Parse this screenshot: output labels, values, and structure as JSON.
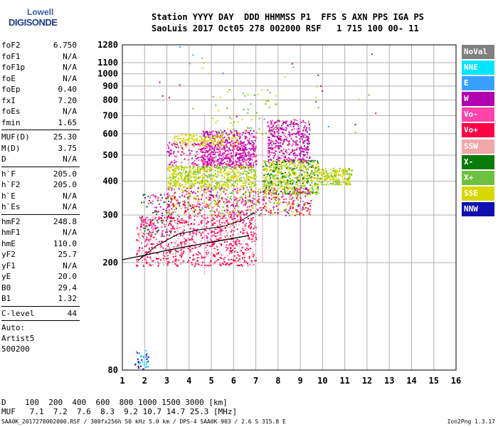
{
  "logo": {
    "line1": "Lowell",
    "line2": "DIGISONDE"
  },
  "header": {
    "line1": "Station YYYY DAY  DDD HHMMSS P1  FFS S AXN PPS IGA PS",
    "line2": "SaoLuis 2017 Oct05 278 002000 RSF   1 715 100 00- 11"
  },
  "params": [
    {
      "k": "foF2",
      "v": "6.750"
    },
    {
      "k": "foF1",
      "v": "N/A"
    },
    {
      "k": "foF1p",
      "v": "N/A"
    },
    {
      "k": "foE",
      "v": "N/A"
    },
    {
      "k": "foEp",
      "v": "0.40"
    },
    {
      "k": "fxI",
      "v": "7.20"
    },
    {
      "k": "foEs",
      "v": "N/A"
    },
    {
      "k": "fmin",
      "v": "1.65"
    },
    {
      "k": "SEP"
    },
    {
      "k": "MUF(D)",
      "v": "25.30"
    },
    {
      "k": "M(D)",
      "v": "3.75"
    },
    {
      "k": "D",
      "v": "N/A"
    },
    {
      "k": "SEP"
    },
    {
      "k": "h`F",
      "v": "205.0"
    },
    {
      "k": "h`F2",
      "v": "205.0"
    },
    {
      "k": "h`E",
      "v": "N/A"
    },
    {
      "k": "h`Es",
      "v": "N/A"
    },
    {
      "k": "SEP"
    },
    {
      "k": "hmF2",
      "v": "248.8"
    },
    {
      "k": "hmF1",
      "v": "N/A"
    },
    {
      "k": "hmE",
      "v": "110.0"
    },
    {
      "k": "yF2",
      "v": "25.7"
    },
    {
      "k": "yF1",
      "v": "N/A"
    },
    {
      "k": "yE",
      "v": "20.0"
    },
    {
      "k": "B0",
      "v": "29.4"
    },
    {
      "k": "B1",
      "v": "1.32"
    },
    {
      "k": "SEP"
    },
    {
      "k": "C-level",
      "v": "44"
    },
    {
      "k": "SEP"
    }
  ],
  "auto": [
    "Auto:",
    "Artist5",
    "500200"
  ],
  "legend": [
    {
      "label": "NoVal",
      "color": "#808080"
    },
    {
      "label": "NNE",
      "color": "#00e5ff"
    },
    {
      "label": "E",
      "color": "#3aa0ff"
    },
    {
      "label": "W",
      "color": "#b000b0"
    },
    {
      "label": "Vo-",
      "color": "#ff44aa"
    },
    {
      "label": "Vo+",
      "color": "#ff0044"
    },
    {
      "label": "SSW",
      "color": "#f0a8a8"
    },
    {
      "label": "X-",
      "color": "#0a7a0a"
    },
    {
      "label": "X+",
      "color": "#6dc040"
    },
    {
      "label": "SSE",
      "color": "#d8d800"
    },
    {
      "label": "NNW",
      "color": "#1010b0"
    }
  ],
  "muf_table": {
    "d_line": "D    100  200  400  600  800 1000 1500 3000 [km]",
    "muf_line": "MUF   7.1  7.2  7.6  8.3  9.2 10.7 14.7 25.3 [MHz]"
  },
  "footer": {
    "left": "SAA0K_2017278002000.RSF / 300fx256h 50 kHz 5.0 km / DPS-4 SAA0K 903 / 2.6 S 315.8 E",
    "right": "Ion2Png 1.3.17"
  },
  "chart_data": {
    "type": "scatter",
    "title": "",
    "xlabel": "",
    "ylabel": "",
    "xlim": [
      1,
      16
    ],
    "ylim": [
      80,
      1280
    ],
    "x_ticks": [
      1,
      2,
      3,
      4,
      5,
      6,
      7,
      8,
      9,
      10,
      11,
      12,
      13,
      14,
      15,
      16
    ],
    "y_ticks": [
      80,
      200,
      300,
      400,
      500,
      600,
      700,
      800,
      900,
      1000,
      1100,
      1280
    ],
    "scale": "log-height",
    "grid": true,
    "legend_position": "right",
    "clusters": [
      {
        "name": "E",
        "fmin": 1.55,
        "fmax": 2.15,
        "hmin": 80,
        "hmax": 95,
        "n": 40,
        "colors": [
          "#3aa0ff",
          "#00e5ff",
          "#1010b0"
        ]
      },
      {
        "name": "Vo+",
        "fmin": 1.6,
        "fmax": 7.0,
        "hmin": 195,
        "hmax": 300,
        "n": 900,
        "colors": [
          "#ff0044",
          "#ff44aa",
          "#ff0044",
          "#f0a8a8"
        ]
      },
      {
        "name": "W",
        "fmin": 4.5,
        "fmax": 7.0,
        "hmin": 450,
        "hmax": 620,
        "n": 500,
        "colors": [
          "#b000b0",
          "#b000b0",
          "#ff44aa"
        ]
      },
      {
        "name": "W",
        "fmin": 7.5,
        "fmax": 9.4,
        "hmin": 470,
        "hmax": 680,
        "n": 400,
        "colors": [
          "#b000b0",
          "#ff44aa",
          "#b000b0"
        ]
      },
      {
        "name": "SSE",
        "fmin": 3.0,
        "fmax": 7.0,
        "hmin": 380,
        "hmax": 460,
        "n": 600,
        "colors": [
          "#d8d800",
          "#d8d800",
          "#6dc040"
        ]
      },
      {
        "name": "SSE",
        "fmin": 7.3,
        "fmax": 9.8,
        "hmin": 360,
        "hmax": 480,
        "n": 600,
        "colors": [
          "#d8d800",
          "#6dc040",
          "#0a7a0a",
          "#d8d800"
        ]
      },
      {
        "name": "SSE",
        "fmin": 9.8,
        "fmax": 11.3,
        "hmin": 390,
        "hmax": 450,
        "n": 200,
        "colors": [
          "#d8d800",
          "#d8d800",
          "#6dc040"
        ]
      },
      {
        "name": "SSE",
        "fmin": 3.3,
        "fmax": 6.2,
        "hmin": 540,
        "hmax": 600,
        "n": 150,
        "colors": [
          "#d8d800"
        ]
      },
      {
        "name": "Vo-",
        "fmin": 3.0,
        "fmax": 9.5,
        "hmin": 300,
        "hmax": 380,
        "n": 700,
        "colors": [
          "#ff44aa",
          "#ff0044",
          "#b000b0",
          "#d8d800",
          "#6dc040"
        ]
      },
      {
        "name": "Vo-",
        "fmin": 1.8,
        "fmax": 3.2,
        "hmin": 250,
        "hmax": 360,
        "n": 120,
        "colors": [
          "#ff44aa",
          "#b000b0",
          "#0a7a0a"
        ]
      },
      {
        "name": "W",
        "fmin": 3.0,
        "fmax": 7.0,
        "hmin": 460,
        "hmax": 560,
        "n": 250,
        "colors": [
          "#b000b0",
          "#ff44aa"
        ]
      },
      {
        "name": "SSE",
        "fmin": 5.0,
        "fmax": 8.0,
        "hmin": 600,
        "hmax": 900,
        "n": 60,
        "colors": [
          "#d8d800",
          "#6dc040"
        ]
      },
      {
        "name": "NoVal",
        "fmin": 2.0,
        "fmax": 12.5,
        "hmin": 600,
        "hmax": 1280,
        "n": 40,
        "colors": [
          "#b000b0",
          "#d8d800",
          "#ff0044",
          "#3aa0ff",
          "#6dc040"
        ]
      }
    ],
    "trace": [
      [
        1.0,
        205
      ],
      [
        2.0,
        213
      ],
      [
        3.0,
        222
      ],
      [
        4.0,
        230
      ],
      [
        5.0,
        238
      ],
      [
        6.0,
        246
      ],
      [
        6.7,
        252
      ]
    ],
    "virtual_curve": [
      [
        1.7,
        203
      ],
      [
        2.5,
        230
      ],
      [
        3.5,
        255
      ],
      [
        4.5,
        265
      ],
      [
        5.5,
        272
      ],
      [
        6.3,
        285
      ],
      [
        6.9,
        305
      ]
    ],
    "vertical_lines": [
      [
        4.7,
        180,
        700
      ],
      [
        7.3,
        200,
        700
      ],
      [
        9.0,
        200,
        680
      ]
    ]
  }
}
